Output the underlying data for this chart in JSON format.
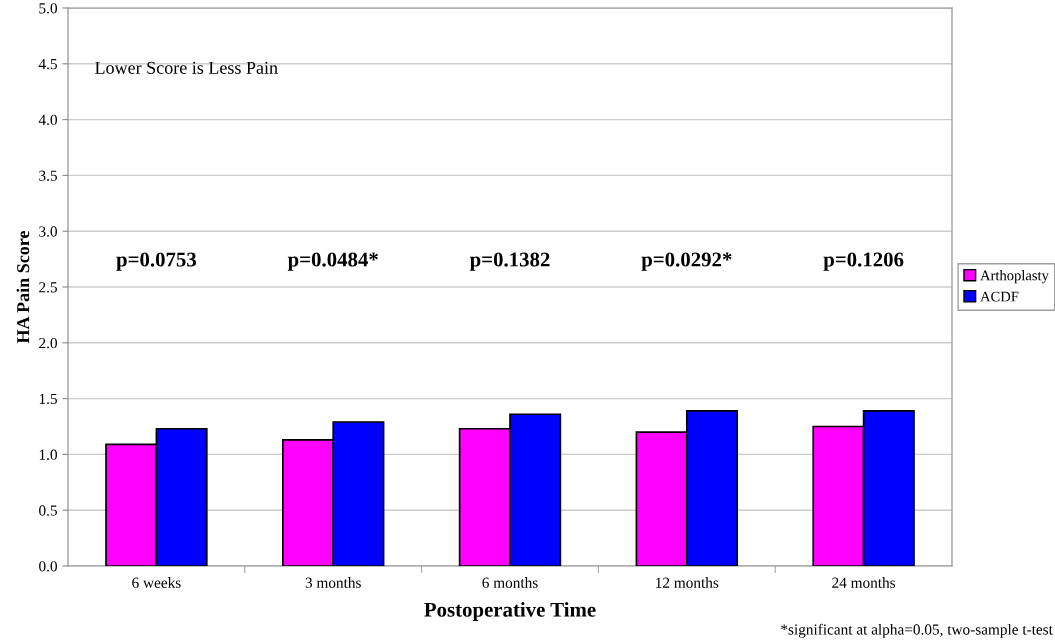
{
  "chart_data": {
    "type": "bar",
    "xlabel": "Postoperative Time",
    "ylabel": "HA Pain Score",
    "categories": [
      "6 weeks",
      "3 months",
      "6 months",
      "12 months",
      "24 months"
    ],
    "series": [
      {
        "name": "Arthoplasty",
        "color": "#ff00ff",
        "values": [
          1.09,
          1.13,
          1.23,
          1.2,
          1.25
        ]
      },
      {
        "name": "ACDF",
        "color": "#0000ff",
        "values": [
          1.23,
          1.29,
          1.36,
          1.39,
          1.39
        ]
      }
    ],
    "ylim": [
      0,
      5
    ],
    "yticks": [
      {
        "value": 0,
        "label": "0.0"
      },
      {
        "value": 0.5,
        "label": "0.5"
      },
      {
        "value": 1,
        "label": "1.0"
      },
      {
        "value": 1.5,
        "label": "1.5"
      },
      {
        "value": 2,
        "label": "2.0"
      },
      {
        "value": 2.5,
        "label": "2.5"
      },
      {
        "value": 3,
        "label": "3.0"
      },
      {
        "value": 3.5,
        "label": "3.5"
      },
      {
        "value": 4,
        "label": "4.0"
      },
      {
        "value": 4.5,
        "label": "4.5"
      },
      {
        "value": 5,
        "label": "5.0"
      }
    ],
    "grid": "y",
    "legend": "right",
    "annotations": [
      "p=0.0753",
      "p=0.0484*",
      "p=0.1382",
      "p=0.0292*",
      "p=0.1206",
      "Lower Score is Less Pain",
      "*significant at alpha=0.05, two-sample t-test"
    ]
  }
}
